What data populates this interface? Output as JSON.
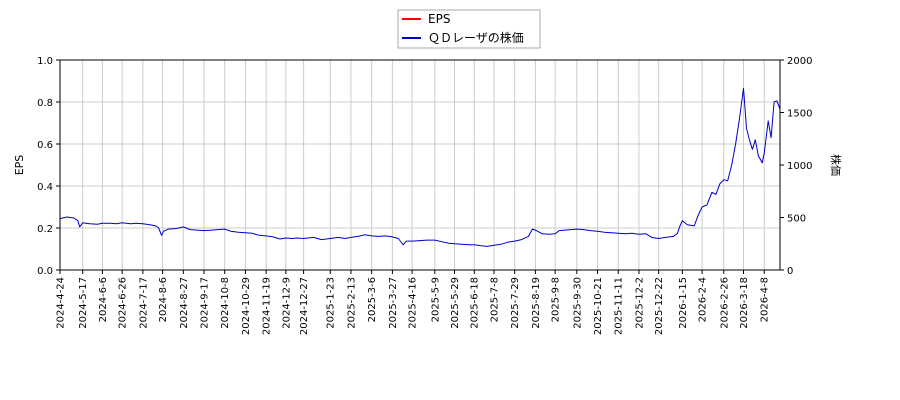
{
  "chart_data": {
    "type": "line",
    "legend": {
      "placement": "top-center",
      "entries": [
        {
          "label": "EPS",
          "color": "#ff0000"
        },
        {
          "label": "ＱＤレーザの株価",
          "color": "#0000cc"
        }
      ]
    },
    "y_left": {
      "label": "EPS",
      "range": [
        0,
        1.0
      ],
      "ticks": [
        "0.0",
        "0.2",
        "0.4",
        "0.6",
        "0.8",
        "1.0"
      ]
    },
    "y_right": {
      "label": "株価",
      "range": [
        0,
        2000
      ],
      "ticks": [
        "0",
        "500",
        "1000",
        "1500",
        "2000"
      ]
    },
    "x_axis": {
      "range": [
        "2024-04-24",
        "2026-04-24"
      ],
      "tick_labels": [
        "2024-4-24",
        "2024-5-17",
        "2024-6-6",
        "2024-6-26",
        "2024-7-17",
        "2024-8-6",
        "2024-8-27",
        "2024-9-17",
        "2024-10-8",
        "2024-10-29",
        "2024-11-19",
        "2024-12-9",
        "2024-12-27",
        "2025-1-23",
        "2025-2-13",
        "2025-3-6",
        "2025-3-27",
        "2025-4-16",
        "2025-5-9",
        "2025-5-29",
        "2025-6-18",
        "2025-7-8",
        "2025-7-29",
        "2025-8-19",
        "2025-9-8",
        "2025-9-30",
        "2025-10-21",
        "2025-11-11",
        "2025-12-2",
        "2025-12-22",
        "2026-1-15",
        "2026-2-4",
        "2026-2-26",
        "2026-3-18",
        "2026-4-8"
      ]
    },
    "grid": true,
    "series": [
      {
        "name": "ＱＤレーザの株価",
        "axis": "right",
        "color": "#0000cc",
        "points": [
          [
            "2024-04-24",
            490
          ],
          [
            "2024-05-01",
            505
          ],
          [
            "2024-05-08",
            495
          ],
          [
            "2024-05-12",
            470
          ],
          [
            "2024-05-14",
            410
          ],
          [
            "2024-05-17",
            450
          ],
          [
            "2024-05-24",
            440
          ],
          [
            "2024-06-01",
            435
          ],
          [
            "2024-06-06",
            445
          ],
          [
            "2024-06-14",
            445
          ],
          [
            "2024-06-20",
            440
          ],
          [
            "2024-06-26",
            450
          ],
          [
            "2024-07-05",
            440
          ],
          [
            "2024-07-10",
            445
          ],
          [
            "2024-07-17",
            440
          ],
          [
            "2024-07-24",
            430
          ],
          [
            "2024-07-30",
            420
          ],
          [
            "2024-08-02",
            400
          ],
          [
            "2024-08-05",
            330
          ],
          [
            "2024-08-07",
            370
          ],
          [
            "2024-08-12",
            390
          ],
          [
            "2024-08-20",
            395
          ],
          [
            "2024-08-27",
            410
          ],
          [
            "2024-09-03",
            385
          ],
          [
            "2024-09-10",
            380
          ],
          [
            "2024-09-17",
            375
          ],
          [
            "2024-09-25",
            380
          ],
          [
            "2024-10-01",
            385
          ],
          [
            "2024-10-08",
            390
          ],
          [
            "2024-10-14",
            370
          ],
          [
            "2024-10-22",
            360
          ],
          [
            "2024-10-29",
            355
          ],
          [
            "2024-11-05",
            350
          ],
          [
            "2024-11-12",
            330
          ],
          [
            "2024-11-19",
            325
          ],
          [
            "2024-11-26",
            315
          ],
          [
            "2024-12-03",
            295
          ],
          [
            "2024-12-09",
            305
          ],
          [
            "2024-12-16",
            300
          ],
          [
            "2024-12-20",
            305
          ],
          [
            "2024-12-27",
            300
          ],
          [
            "2025-01-06",
            310
          ],
          [
            "2025-01-14",
            290
          ],
          [
            "2025-01-23",
            300
          ],
          [
            "2025-01-31",
            310
          ],
          [
            "2025-02-07",
            300
          ],
          [
            "2025-02-13",
            310
          ],
          [
            "2025-02-20",
            320
          ],
          [
            "2025-02-27",
            335
          ],
          [
            "2025-03-06",
            325
          ],
          [
            "2025-03-13",
            320
          ],
          [
            "2025-03-20",
            325
          ],
          [
            "2025-03-27",
            315
          ],
          [
            "2025-04-02",
            300
          ],
          [
            "2025-04-07",
            240
          ],
          [
            "2025-04-10",
            275
          ],
          [
            "2025-04-16",
            275
          ],
          [
            "2025-04-24",
            280
          ],
          [
            "2025-05-01",
            285
          ],
          [
            "2025-05-09",
            285
          ],
          [
            "2025-05-16",
            270
          ],
          [
            "2025-05-23",
            255
          ],
          [
            "2025-05-29",
            250
          ],
          [
            "2025-06-05",
            245
          ],
          [
            "2025-06-12",
            240
          ],
          [
            "2025-06-18",
            240
          ],
          [
            "2025-06-25",
            230
          ],
          [
            "2025-07-01",
            225
          ],
          [
            "2025-07-08",
            235
          ],
          [
            "2025-07-15",
            245
          ],
          [
            "2025-07-22",
            265
          ],
          [
            "2025-07-29",
            275
          ],
          [
            "2025-08-05",
            290
          ],
          [
            "2025-08-12",
            320
          ],
          [
            "2025-08-16",
            390
          ],
          [
            "2025-08-19",
            380
          ],
          [
            "2025-08-26",
            345
          ],
          [
            "2025-09-02",
            340
          ],
          [
            "2025-09-08",
            345
          ],
          [
            "2025-09-12",
            375
          ],
          [
            "2025-09-18",
            380
          ],
          [
            "2025-09-24",
            385
          ],
          [
            "2025-09-30",
            390
          ],
          [
            "2025-10-07",
            385
          ],
          [
            "2025-10-14",
            375
          ],
          [
            "2025-10-21",
            370
          ],
          [
            "2025-10-28",
            360
          ],
          [
            "2025-11-04",
            355
          ],
          [
            "2025-11-11",
            350
          ],
          [
            "2025-11-18",
            345
          ],
          [
            "2025-11-25",
            350
          ],
          [
            "2025-12-02",
            340
          ],
          [
            "2025-12-09",
            345
          ],
          [
            "2025-12-15",
            310
          ],
          [
            "2025-12-22",
            300
          ],
          [
            "2025-12-29",
            310
          ],
          [
            "2026-01-06",
            320
          ],
          [
            "2026-01-10",
            350
          ],
          [
            "2026-01-13",
            430
          ],
          [
            "2026-01-15",
            470
          ],
          [
            "2026-01-20",
            430
          ],
          [
            "2026-01-27",
            420
          ],
          [
            "2026-01-31",
            520
          ],
          [
            "2026-02-04",
            600
          ],
          [
            "2026-02-09",
            620
          ],
          [
            "2026-02-14",
            740
          ],
          [
            "2026-02-18",
            720
          ],
          [
            "2026-02-22",
            820
          ],
          [
            "2026-02-26",
            860
          ],
          [
            "2026-03-02",
            850
          ],
          [
            "2026-03-06",
            1000
          ],
          [
            "2026-03-10",
            1200
          ],
          [
            "2026-03-14",
            1450
          ],
          [
            "2026-03-18",
            1730
          ],
          [
            "2026-03-21",
            1350
          ],
          [
            "2026-03-24",
            1240
          ],
          [
            "2026-03-27",
            1150
          ],
          [
            "2026-03-30",
            1240
          ],
          [
            "2026-04-02",
            1090
          ],
          [
            "2026-04-06",
            1020
          ],
          [
            "2026-04-08",
            1110
          ],
          [
            "2026-04-12",
            1420
          ],
          [
            "2026-04-15",
            1260
          ],
          [
            "2026-04-18",
            1600
          ],
          [
            "2026-04-21",
            1610
          ],
          [
            "2026-04-24",
            1530
          ]
        ]
      }
    ]
  }
}
